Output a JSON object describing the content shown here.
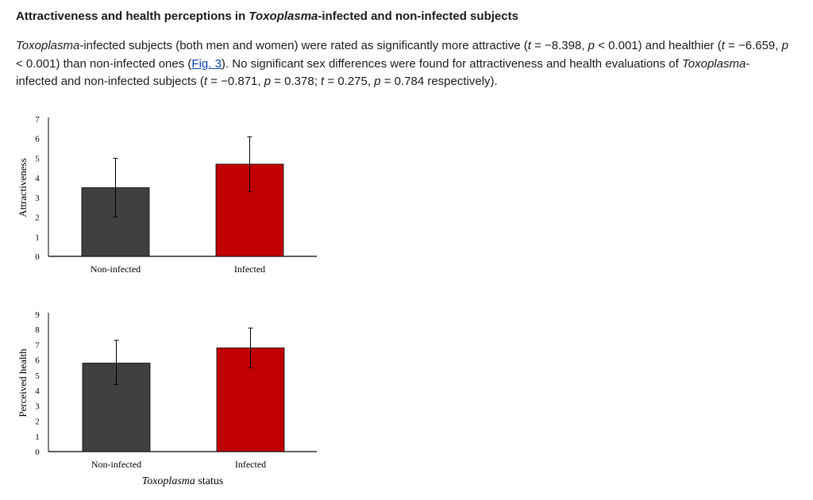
{
  "section": {
    "heading_parts": [
      {
        "t": "Attractiveness and health perceptions in ",
        "i": false
      },
      {
        "t": "Toxoplasma",
        "i": true
      },
      {
        "t": "-infected and non-infected subjects",
        "i": false
      }
    ],
    "paragraph_parts": [
      {
        "t": "Toxoplasma",
        "i": true
      },
      {
        "t": "-infected subjects (both men and women) were rated as significantly more attractive ("
      },
      {
        "t": "t",
        "i": true
      },
      {
        "t": " = −8.398, "
      },
      {
        "t": "p",
        "i": true
      },
      {
        "t": " < 0.001) and healthier ("
      },
      {
        "t": "t",
        "i": true
      },
      {
        "t": " = −6.659, "
      },
      {
        "t": "p",
        "i": true
      },
      {
        "t": " < 0.001) than non-infected ones ("
      },
      {
        "t": "Fig. 3",
        "link": true
      },
      {
        "t": "). No significant sex differences were found for attractiveness and health evaluations of "
      },
      {
        "t": "Toxoplasma",
        "i": true
      },
      {
        "t": "-infected and non-infected subjects ("
      },
      {
        "t": "t",
        "i": true
      },
      {
        "t": " = −0.871, "
      },
      {
        "t": "p",
        "i": true
      },
      {
        "t": " = 0.378; "
      },
      {
        "t": "t",
        "i": true
      },
      {
        "t": " = 0.275, "
      },
      {
        "t": "p",
        "i": true
      },
      {
        "t": " = 0.784 respectively)."
      }
    ]
  },
  "figure": {
    "xlabel_parts": [
      {
        "t": "Toxoplasma",
        "i": true
      },
      {
        "t": " status",
        "i": false
      }
    ]
  },
  "chart_data": [
    {
      "type": "bar",
      "categories": [
        "Non-infected",
        "Infected"
      ],
      "values": [
        3.5,
        4.7
      ],
      "error_low": [
        2.0,
        3.3
      ],
      "error_high": [
        5.0,
        6.1
      ],
      "colors": [
        "#404040",
        "#c00000"
      ],
      "ylabel": "Attractiveness",
      "xlabel": "",
      "ylim": [
        0,
        7
      ],
      "yticks": [
        0,
        1,
        2,
        3,
        4,
        5,
        6,
        7
      ],
      "grid": false
    },
    {
      "type": "bar",
      "categories": [
        "Non-infected",
        "Infected"
      ],
      "values": [
        5.8,
        6.8
      ],
      "error_low": [
        4.4,
        5.5
      ],
      "error_high": [
        7.3,
        8.1
      ],
      "colors": [
        "#404040",
        "#c00000"
      ],
      "ylabel": "Perceived health",
      "xlabel": "Toxoplasma status",
      "ylim": [
        0,
        9
      ],
      "yticks": [
        0,
        1,
        2,
        3,
        4,
        5,
        6,
        7,
        8,
        9
      ],
      "grid": false
    }
  ]
}
